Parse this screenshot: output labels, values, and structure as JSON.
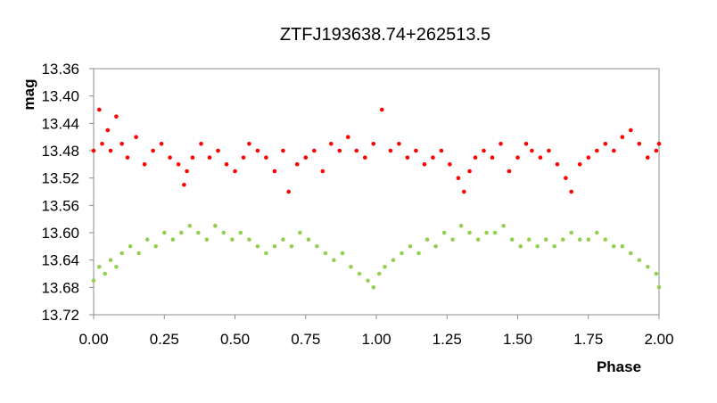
{
  "chart_data": {
    "type": "scatter",
    "title": "ZTFJ193638.74+262513.5",
    "xlabel": "Phase",
    "ylabel": "mag",
    "xlim": [
      0.0,
      2.0
    ],
    "ylim": [
      13.36,
      13.72
    ],
    "y_inverted": true,
    "xticks": [
      "0.00",
      "0.25",
      "0.50",
      "0.75",
      "1.00",
      "1.25",
      "1.50",
      "1.75",
      "2.00"
    ],
    "yticks": [
      "13.36",
      "13.40",
      "13.44",
      "13.48",
      "13.52",
      "13.56",
      "13.60",
      "13.64",
      "13.68",
      "13.72"
    ],
    "grid": false,
    "legend": "none",
    "series": [
      {
        "color": "#ff0000",
        "x": [
          0.0,
          0.02,
          0.03,
          0.05,
          0.06,
          0.08,
          0.1,
          0.12,
          0.15,
          0.18,
          0.21,
          0.24,
          0.27,
          0.3,
          0.32,
          0.33,
          0.35,
          0.38,
          0.41,
          0.44,
          0.47,
          0.5,
          0.53,
          0.55,
          0.58,
          0.61,
          0.64,
          0.67,
          0.69,
          0.72,
          0.75,
          0.78,
          0.81,
          0.84,
          0.87,
          0.9,
          0.93,
          0.96,
          0.99,
          1.02,
          1.05,
          1.08,
          1.11,
          1.14,
          1.17,
          1.2,
          1.23,
          1.26,
          1.29,
          1.31,
          1.33,
          1.35,
          1.38,
          1.41,
          1.44,
          1.47,
          1.5,
          1.53,
          1.55,
          1.58,
          1.61,
          1.64,
          1.67,
          1.69,
          1.72,
          1.75,
          1.78,
          1.81,
          1.84,
          1.87,
          1.9,
          1.93,
          1.96,
          1.99,
          2.0
        ],
        "y": [
          13.48,
          13.42,
          13.47,
          13.45,
          13.48,
          13.43,
          13.47,
          13.49,
          13.46,
          13.5,
          13.48,
          13.47,
          13.49,
          13.5,
          13.53,
          13.51,
          13.49,
          13.47,
          13.49,
          13.48,
          13.5,
          13.51,
          13.49,
          13.47,
          13.48,
          13.49,
          13.51,
          13.48,
          13.54,
          13.5,
          13.49,
          13.48,
          13.51,
          13.47,
          13.48,
          13.46,
          13.48,
          13.49,
          13.47,
          13.42,
          13.48,
          13.47,
          13.49,
          13.48,
          13.5,
          13.49,
          13.48,
          13.5,
          13.52,
          13.54,
          13.51,
          13.49,
          13.48,
          13.49,
          13.47,
          13.51,
          13.49,
          13.47,
          13.48,
          13.49,
          13.48,
          13.5,
          13.52,
          13.54,
          13.5,
          13.49,
          13.48,
          13.47,
          13.48,
          13.46,
          13.45,
          13.47,
          13.49,
          13.48,
          13.47
        ]
      },
      {
        "color": "#92d050",
        "x": [
          0.0,
          0.02,
          0.04,
          0.06,
          0.08,
          0.1,
          0.13,
          0.16,
          0.19,
          0.22,
          0.25,
          0.28,
          0.31,
          0.34,
          0.37,
          0.4,
          0.43,
          0.46,
          0.49,
          0.52,
          0.55,
          0.58,
          0.61,
          0.64,
          0.67,
          0.7,
          0.73,
          0.76,
          0.79,
          0.82,
          0.85,
          0.88,
          0.91,
          0.94,
          0.97,
          0.99,
          1.01,
          1.03,
          1.06,
          1.09,
          1.12,
          1.15,
          1.18,
          1.21,
          1.24,
          1.27,
          1.3,
          1.33,
          1.36,
          1.39,
          1.42,
          1.45,
          1.48,
          1.51,
          1.54,
          1.57,
          1.6,
          1.63,
          1.66,
          1.69,
          1.72,
          1.75,
          1.78,
          1.81,
          1.84,
          1.87,
          1.9,
          1.93,
          1.96,
          1.99,
          2.0
        ],
        "y": [
          13.67,
          13.65,
          13.66,
          13.64,
          13.65,
          13.63,
          13.62,
          13.63,
          13.61,
          13.62,
          13.6,
          13.61,
          13.6,
          13.59,
          13.6,
          13.61,
          13.59,
          13.6,
          13.61,
          13.6,
          13.61,
          13.62,
          13.63,
          13.62,
          13.61,
          13.62,
          13.6,
          13.61,
          13.62,
          13.63,
          13.64,
          13.63,
          13.65,
          13.66,
          13.67,
          13.68,
          13.66,
          13.65,
          13.64,
          13.63,
          13.62,
          13.63,
          13.61,
          13.62,
          13.6,
          13.61,
          13.59,
          13.6,
          13.61,
          13.6,
          13.6,
          13.59,
          13.61,
          13.62,
          13.61,
          13.62,
          13.61,
          13.62,
          13.61,
          13.6,
          13.61,
          13.61,
          13.6,
          13.61,
          13.62,
          13.62,
          13.63,
          13.64,
          13.65,
          13.66,
          13.68
        ]
      }
    ]
  }
}
